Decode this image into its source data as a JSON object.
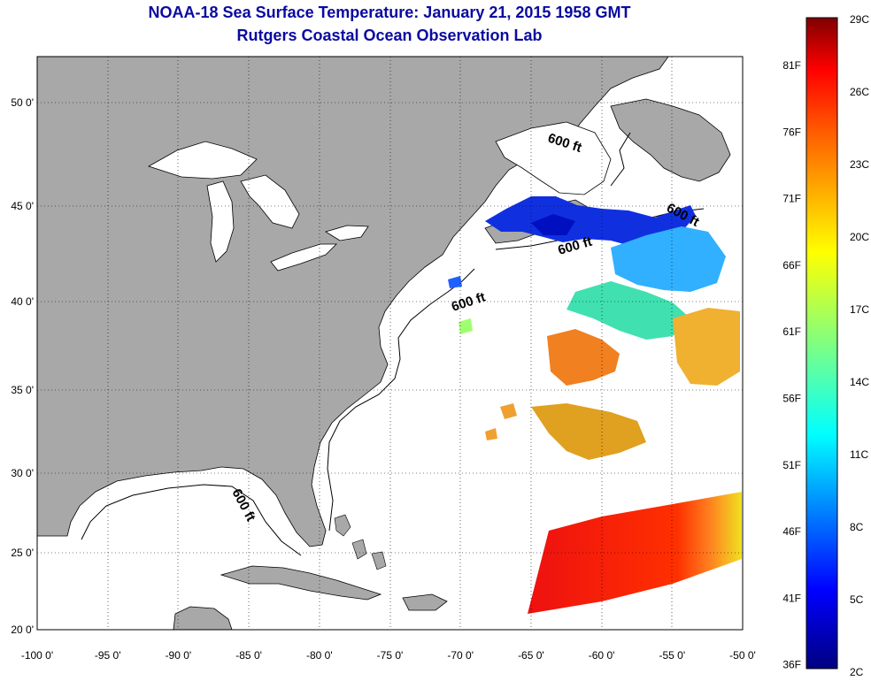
{
  "header": {
    "title": "NOAA-18 Sea Surface Temperature:  January 21, 2015 1958 GMT",
    "subtitle": "Rutgers Coastal Ocean Observation Lab"
  },
  "map": {
    "lon_labels": [
      "-100 0'",
      "-95 0'",
      "-90 0'",
      "-85 0'",
      "-80 0'",
      "-75 0'",
      "-70 0'",
      "-65 0'",
      "-60 0'",
      "-55 0'",
      "-50 0'"
    ],
    "lat_labels": [
      "50 0'",
      "45 0'",
      "40 0'",
      "35 0'",
      "30 0'",
      "25 0'",
      "20 0'"
    ],
    "contour_label": "600 ft",
    "land_color": "#a8a8a8",
    "ocean_color": "#ffffff"
  },
  "colorbar": {
    "celsius": [
      "29C",
      "26C",
      "23C",
      "20C",
      "17C",
      "14C",
      "11C",
      "8C",
      "5C",
      "2C"
    ],
    "fahrenheit": [
      "81F",
      "76F",
      "71F",
      "66F",
      "61F",
      "56F",
      "51F",
      "46F",
      "41F",
      "36F"
    ],
    "colors": [
      "#800000",
      "#ff0000",
      "#ff8000",
      "#ffff00",
      "#80ff80",
      "#00ffff",
      "#0080ff",
      "#0000ff",
      "#000080"
    ]
  }
}
